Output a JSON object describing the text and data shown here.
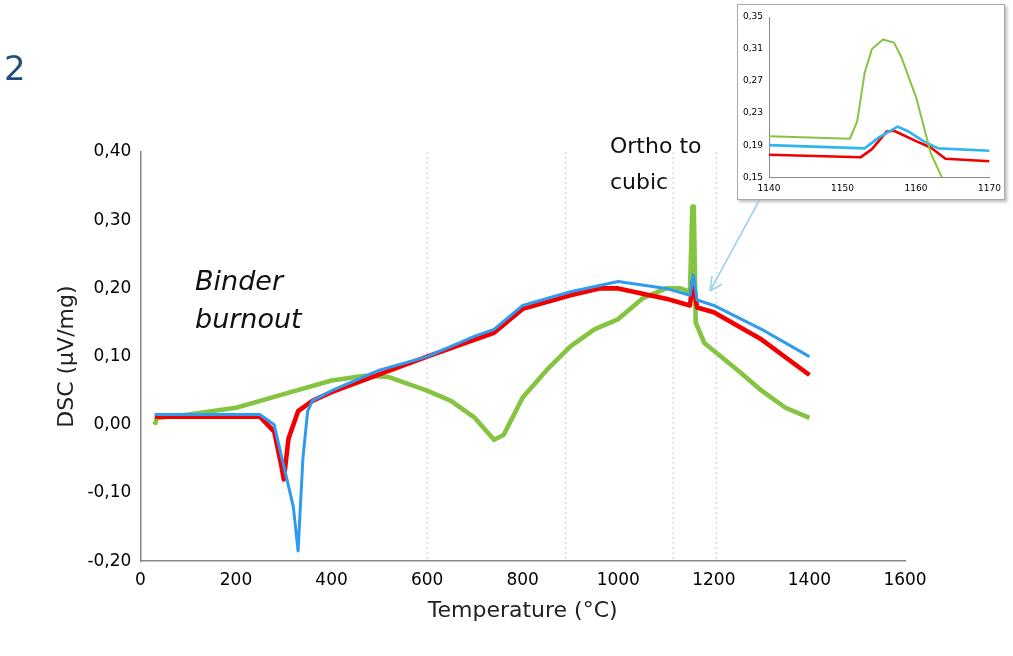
{
  "chart_data": [
    {
      "type": "line",
      "xlabel": "Temperature (°C)",
      "ylabel": "DSC (µV/mg)",
      "annotations": [
        "2",
        "Binder burnout",
        "Ortho to cubic"
      ],
      "xlim": [
        0,
        1600
      ],
      "xticks": [
        0,
        200,
        400,
        600,
        800,
        1000,
        1200,
        1400,
        1600
      ],
      "ylim": [
        -0.2,
        0.4
      ],
      "yticks": [
        {
          "value": -0.2,
          "label": "-0,20"
        },
        {
          "value": -0.1,
          "label": "-0,10"
        },
        {
          "value": 0,
          "label": "0,00"
        },
        {
          "value": 0.1,
          "label": "0,10"
        },
        {
          "value": 0.2,
          "label": "0,20"
        },
        {
          "value": 0.3,
          "label": "0,30"
        },
        {
          "value": 0.4,
          "label": "0,40"
        }
      ],
      "grid": false,
      "legend": false,
      "marker": "none",
      "line_style": "solid",
      "ref_lines": [
        {
          "axis": "x",
          "value": 600,
          "color": "#c8c8c8",
          "line_style": "dotted"
        },
        {
          "axis": "x",
          "value": 890,
          "color": "#c8c8c8",
          "line_style": "dotted"
        },
        {
          "axis": "x",
          "value": 1115,
          "color": "#c8c8c8",
          "line_style": "dotted"
        },
        {
          "axis": "x",
          "value": 1205,
          "color": "#c8c8c8",
          "line_style": "dotted"
        }
      ],
      "series": [
        {
          "color": "#2f9bf0",
          "x": [
            30,
            100,
            250,
            280,
            300,
            320,
            330,
            340,
            350,
            360,
            400,
            500,
            600,
            700,
            740,
            800,
            900,
            1000,
            1100,
            1150,
            1157,
            1165,
            1200,
            1300,
            1400
          ],
          "values": [
            0.015,
            0.015,
            0.015,
            0,
            -0.06,
            -0.12,
            -0.185,
            -0.05,
            0.02,
            0.035,
            0.05,
            0.08,
            0.1,
            0.13,
            0.14,
            0.175,
            0.195,
            0.21,
            0.2,
            0.19,
            0.22,
            0.183,
            0.175,
            0.14,
            0.1
          ]
        },
        {
          "color": "#f20000",
          "x": [
            30,
            100,
            250,
            280,
            295,
            300,
            310,
            330,
            360,
            400,
            600,
            700,
            740,
            800,
            900,
            960,
            1000,
            1100,
            1150,
            1156,
            1165,
            1200,
            1300,
            1400
          ],
          "values": [
            0.012,
            0.012,
            0.012,
            -0.01,
            -0.06,
            -0.08,
            -0.02,
            0.02,
            0.035,
            0.048,
            0.1,
            0.125,
            0.135,
            0.17,
            0.19,
            0.2,
            0.2,
            0.185,
            0.175,
            0.21,
            0.172,
            0.165,
            0.125,
            0.073
          ]
        },
        {
          "color": "#84c441",
          "x": [
            30,
            35,
            100,
            200,
            300,
            400,
            470,
            520,
            600,
            650,
            700,
            740,
            760,
            800,
            850,
            900,
            950,
            1000,
            1050,
            1100,
            1130,
            1150,
            1155,
            1158,
            1162,
            1180,
            1250,
            1300,
            1350,
            1400
          ],
          "values": [
            0,
            0.01,
            0.015,
            0.025,
            0.045,
            0.065,
            0.072,
            0.07,
            0.05,
            0.035,
            0.01,
            -0.022,
            -0.015,
            0.04,
            0.08,
            0.115,
            0.14,
            0.155,
            0.185,
            0.2,
            0.2,
            0.195,
            0.32,
            0.32,
            0.15,
            0.12,
            0.08,
            0.05,
            0.025,
            0.01
          ]
        }
      ]
    },
    {
      "type": "line",
      "xlim": [
        1140,
        1170
      ],
      "xticks": [
        1140,
        1150,
        1160,
        1170
      ],
      "ylim": [
        0.15,
        0.35
      ],
      "yticks": [
        {
          "value": 0.15,
          "label": "0,15"
        },
        {
          "value": 0.19,
          "label": "0,19"
        },
        {
          "value": 0.23,
          "label": "0,23"
        },
        {
          "value": 0.27,
          "label": "0,27"
        },
        {
          "value": 0.31,
          "label": "0,31"
        },
        {
          "value": 0.35,
          "label": "0,35"
        }
      ],
      "grid": false,
      "legend": false,
      "marker": "none",
      "line_style": "solid",
      "series": [
        {
          "color": "#84c441",
          "x": [
            1140,
            1151,
            1152,
            1153,
            1154,
            1155.5,
            1157,
            1158,
            1160,
            1162,
            1163.5
          ],
          "values": [
            0.201,
            0.198,
            0.22,
            0.28,
            0.31,
            0.322,
            0.318,
            0.3,
            0.25,
            0.18,
            0.15
          ]
        },
        {
          "color": "#2fb6f0",
          "x": [
            1140,
            1153,
            1155,
            1157.5,
            1159,
            1161,
            1163,
            1170
          ],
          "values": [
            0.19,
            0.186,
            0.2,
            0.213,
            0.207,
            0.195,
            0.186,
            0.183
          ]
        },
        {
          "color": "#f20000",
          "x": [
            1140,
            1152.5,
            1154,
            1156,
            1157,
            1160,
            1162,
            1164,
            1170
          ],
          "values": [
            0.178,
            0.175,
            0.185,
            0.207,
            0.208,
            0.195,
            0.187,
            0.173,
            0.17
          ]
        }
      ]
    }
  ]
}
